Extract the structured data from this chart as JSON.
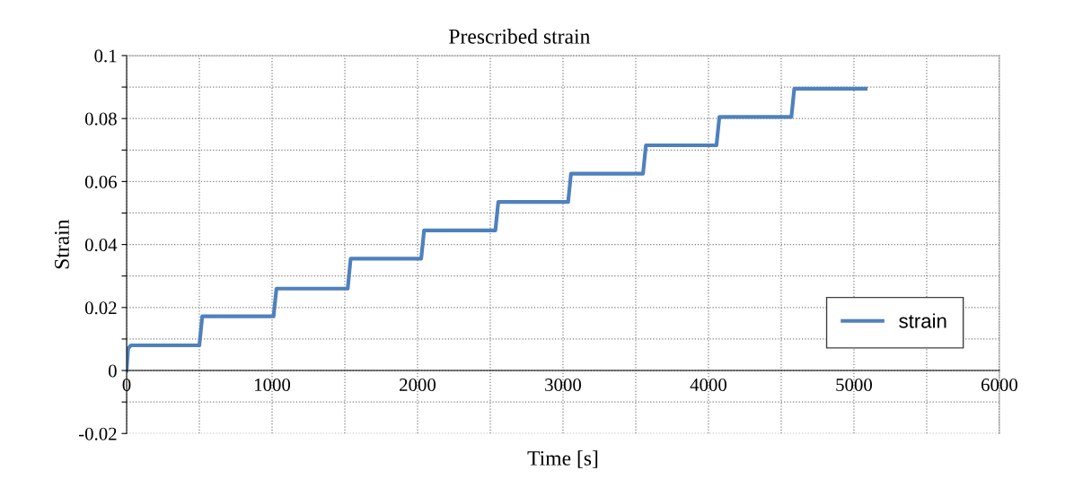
{
  "chart_data": {
    "type": "line",
    "title": "Prescribed strain",
    "xlabel": "Time [s]",
    "ylabel": "Strain",
    "series": [
      {
        "name": "strain",
        "color": "#4f81bd",
        "x": [
          0,
          10,
          30,
          500,
          520,
          1010,
          1030,
          1520,
          1540,
          2025,
          2045,
          2535,
          2555,
          3035,
          3055,
          3550,
          3570,
          4055,
          4075,
          4570,
          4590,
          5080
        ],
        "values": [
          0,
          0.007,
          0.008,
          0.008,
          0.0172,
          0.0172,
          0.026,
          0.026,
          0.0355,
          0.0355,
          0.0445,
          0.0445,
          0.0535,
          0.0535,
          0.0625,
          0.0625,
          0.0715,
          0.0715,
          0.0805,
          0.0805,
          0.0895,
          0.0895
        ]
      }
    ],
    "xlim": [
      0,
      6000
    ],
    "xticks": [
      0,
      {
        "value": 500,
        "label": null
      },
      1000,
      {
        "value": 1500,
        "label": null
      },
      2000,
      {
        "value": 2500,
        "label": null
      },
      3000,
      {
        "value": 3500,
        "label": null
      },
      4000,
      {
        "value": 4500,
        "label": null
      },
      5000,
      {
        "value": 5500,
        "label": null
      },
      6000
    ],
    "ylim": [
      -0.02,
      0.1
    ],
    "yticks": [
      -0.02,
      {
        "value": -0.01,
        "label": null
      },
      0,
      {
        "value": 0.01,
        "label": null
      },
      0.02,
      {
        "value": 0.03,
        "label": null
      },
      0.04,
      {
        "value": 0.05,
        "label": null
      },
      0.06,
      {
        "value": 0.07,
        "label": null
      },
      0.08,
      {
        "value": 0.09,
        "label": null
      },
      0.1
    ],
    "grid": true,
    "legend": "bottom right",
    "marker": "none",
    "line_style": "solid"
  }
}
